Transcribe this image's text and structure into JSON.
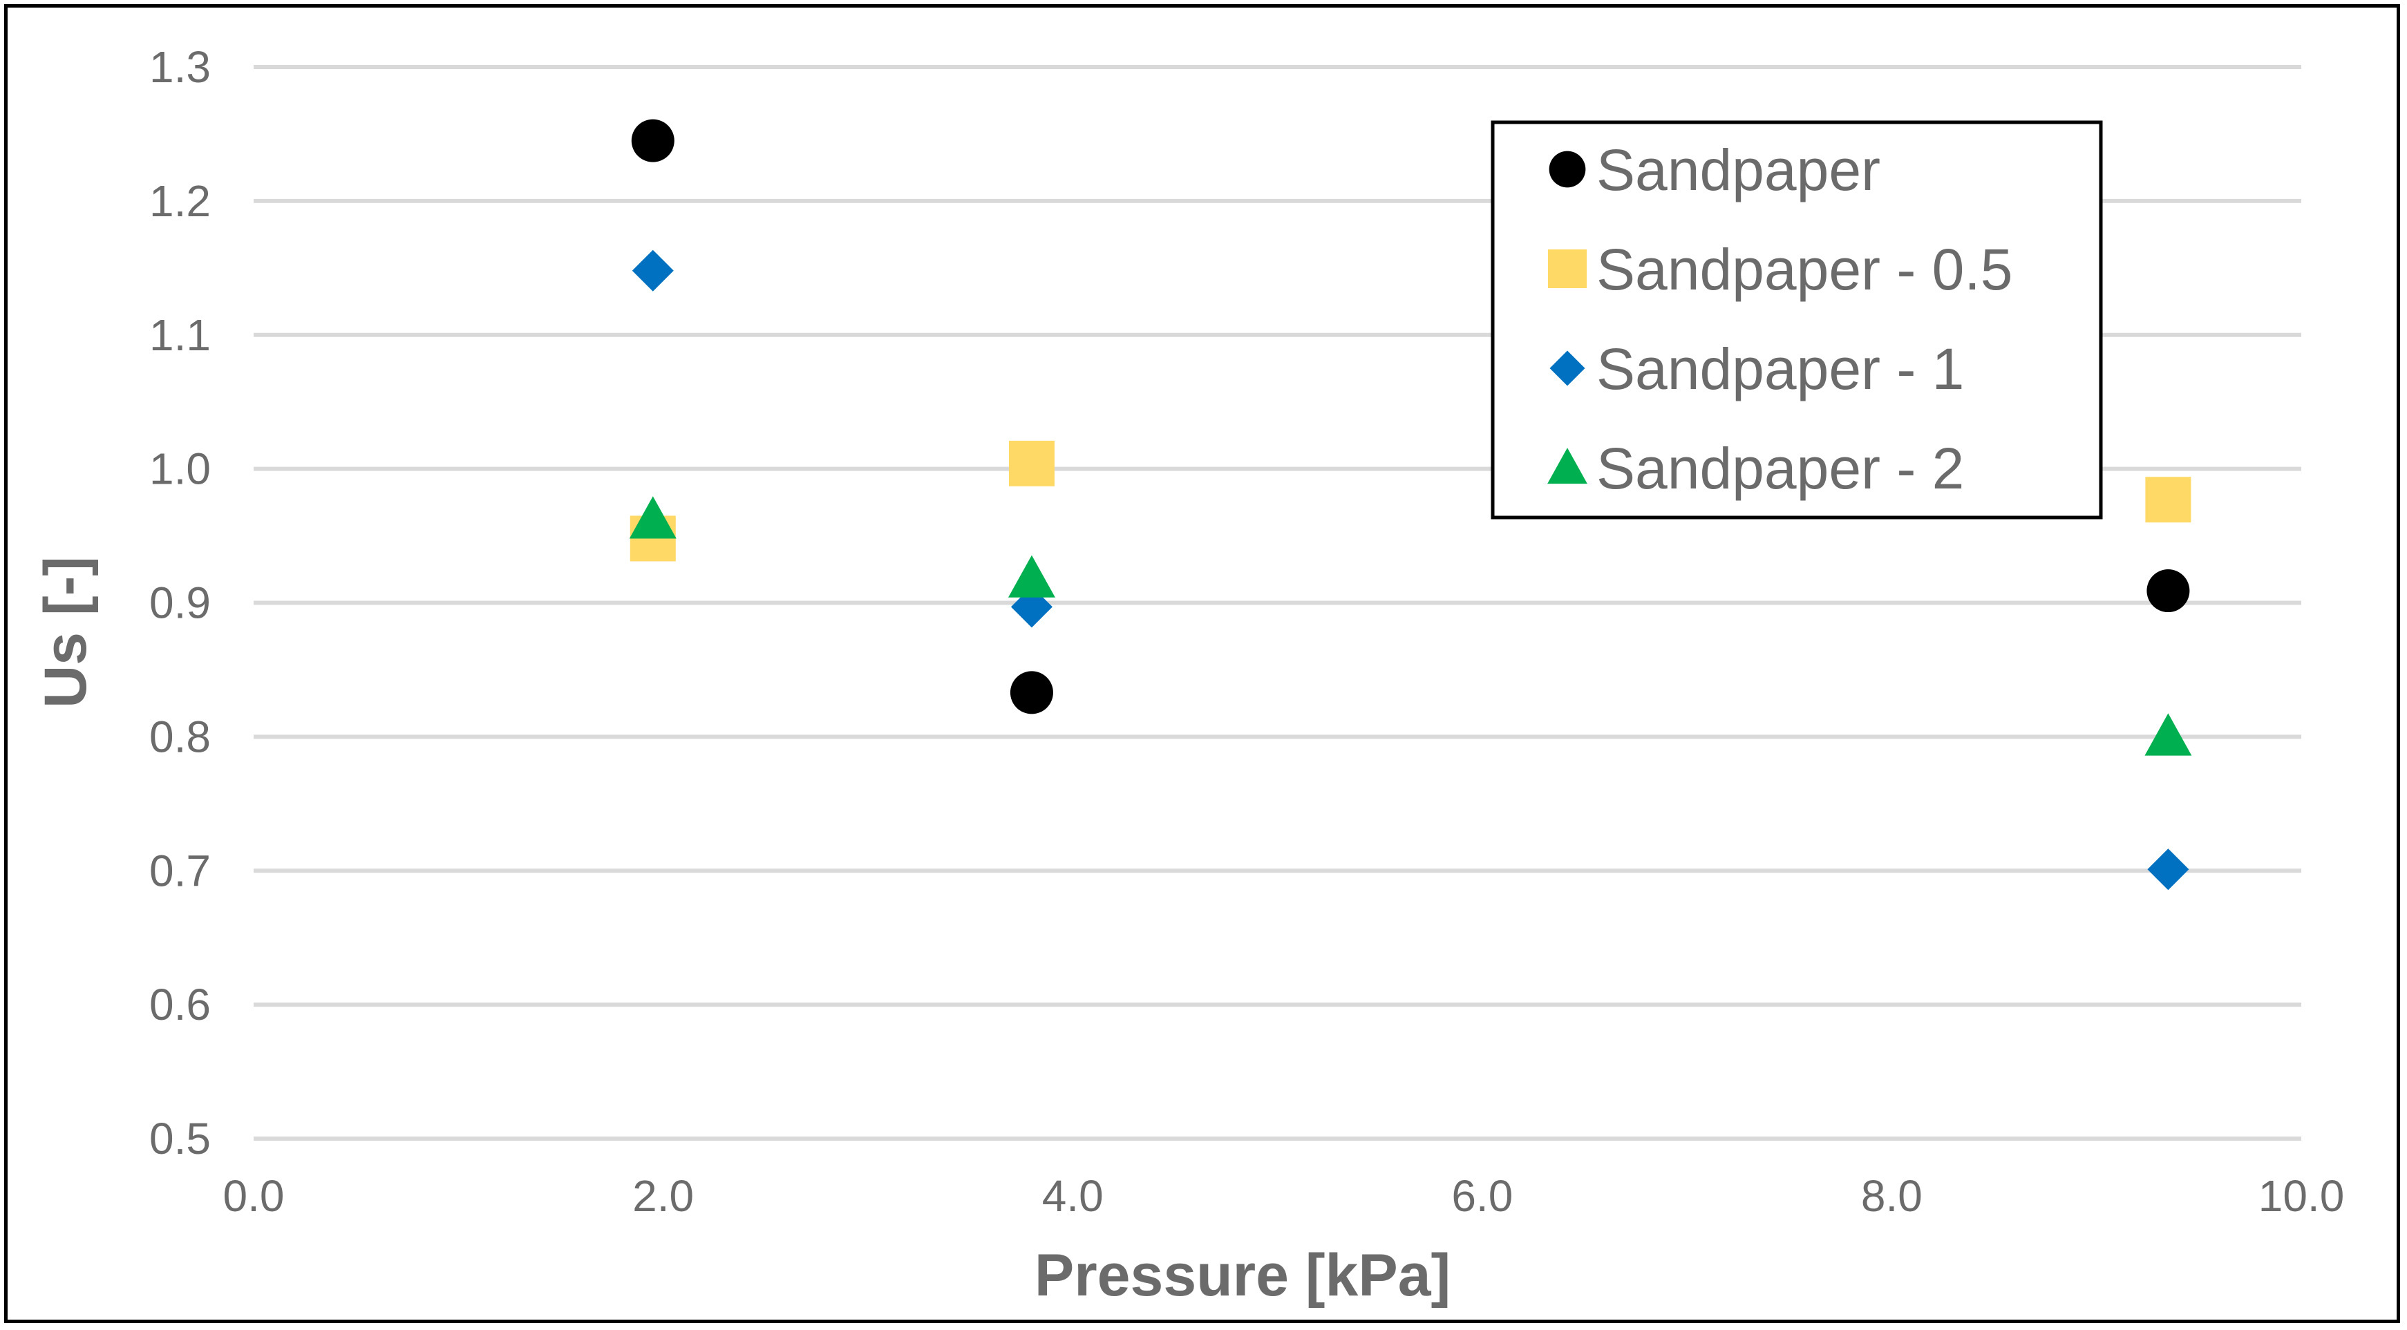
{
  "chart_data": {
    "type": "scatter",
    "title": "",
    "xlabel": "Pressure [kPa]",
    "ylabel": "Us  [-]",
    "xlim": [
      0.0,
      10.0
    ],
    "ylim": [
      0.5,
      1.3
    ],
    "xticks": [
      0.0,
      2.0,
      4.0,
      6.0,
      8.0,
      10.0
    ],
    "xtick_labels": [
      "0.0",
      "2.0",
      "4.0",
      "6.0",
      "8.0",
      "10.0"
    ],
    "yticks": [
      0.5,
      0.6,
      0.7,
      0.8,
      0.9,
      1.0,
      1.1,
      1.2,
      1.3
    ],
    "ytick_labels": [
      "0.5",
      "0.6",
      "0.7",
      "0.8",
      "0.9",
      "1.0",
      "1.1",
      "1.2",
      "1.3"
    ],
    "grid": "horizontal",
    "legend_position": "top-right",
    "series": [
      {
        "name": "Sandpaper",
        "marker": "circle",
        "color": "#000000",
        "x": [
          1.95,
          3.8,
          9.35
        ],
        "y": [
          1.245,
          0.833,
          0.909
        ]
      },
      {
        "name": "Sandpaper - 0.5",
        "marker": "square",
        "color": "#FFD966",
        "x": [
          1.95,
          3.8,
          9.35
        ],
        "y": [
          0.948,
          1.004,
          0.977
        ]
      },
      {
        "name": "Sandpaper - 1",
        "marker": "diamond",
        "color": "#0070C0",
        "x": [
          1.95,
          3.8,
          9.35
        ],
        "y": [
          1.148,
          0.897,
          0.701
        ]
      },
      {
        "name": "Sandpaper - 2",
        "marker": "triangle",
        "color": "#00B050",
        "x": [
          1.95,
          3.8,
          9.35
        ],
        "y": [
          0.962,
          0.918,
          0.8
        ]
      }
    ]
  }
}
